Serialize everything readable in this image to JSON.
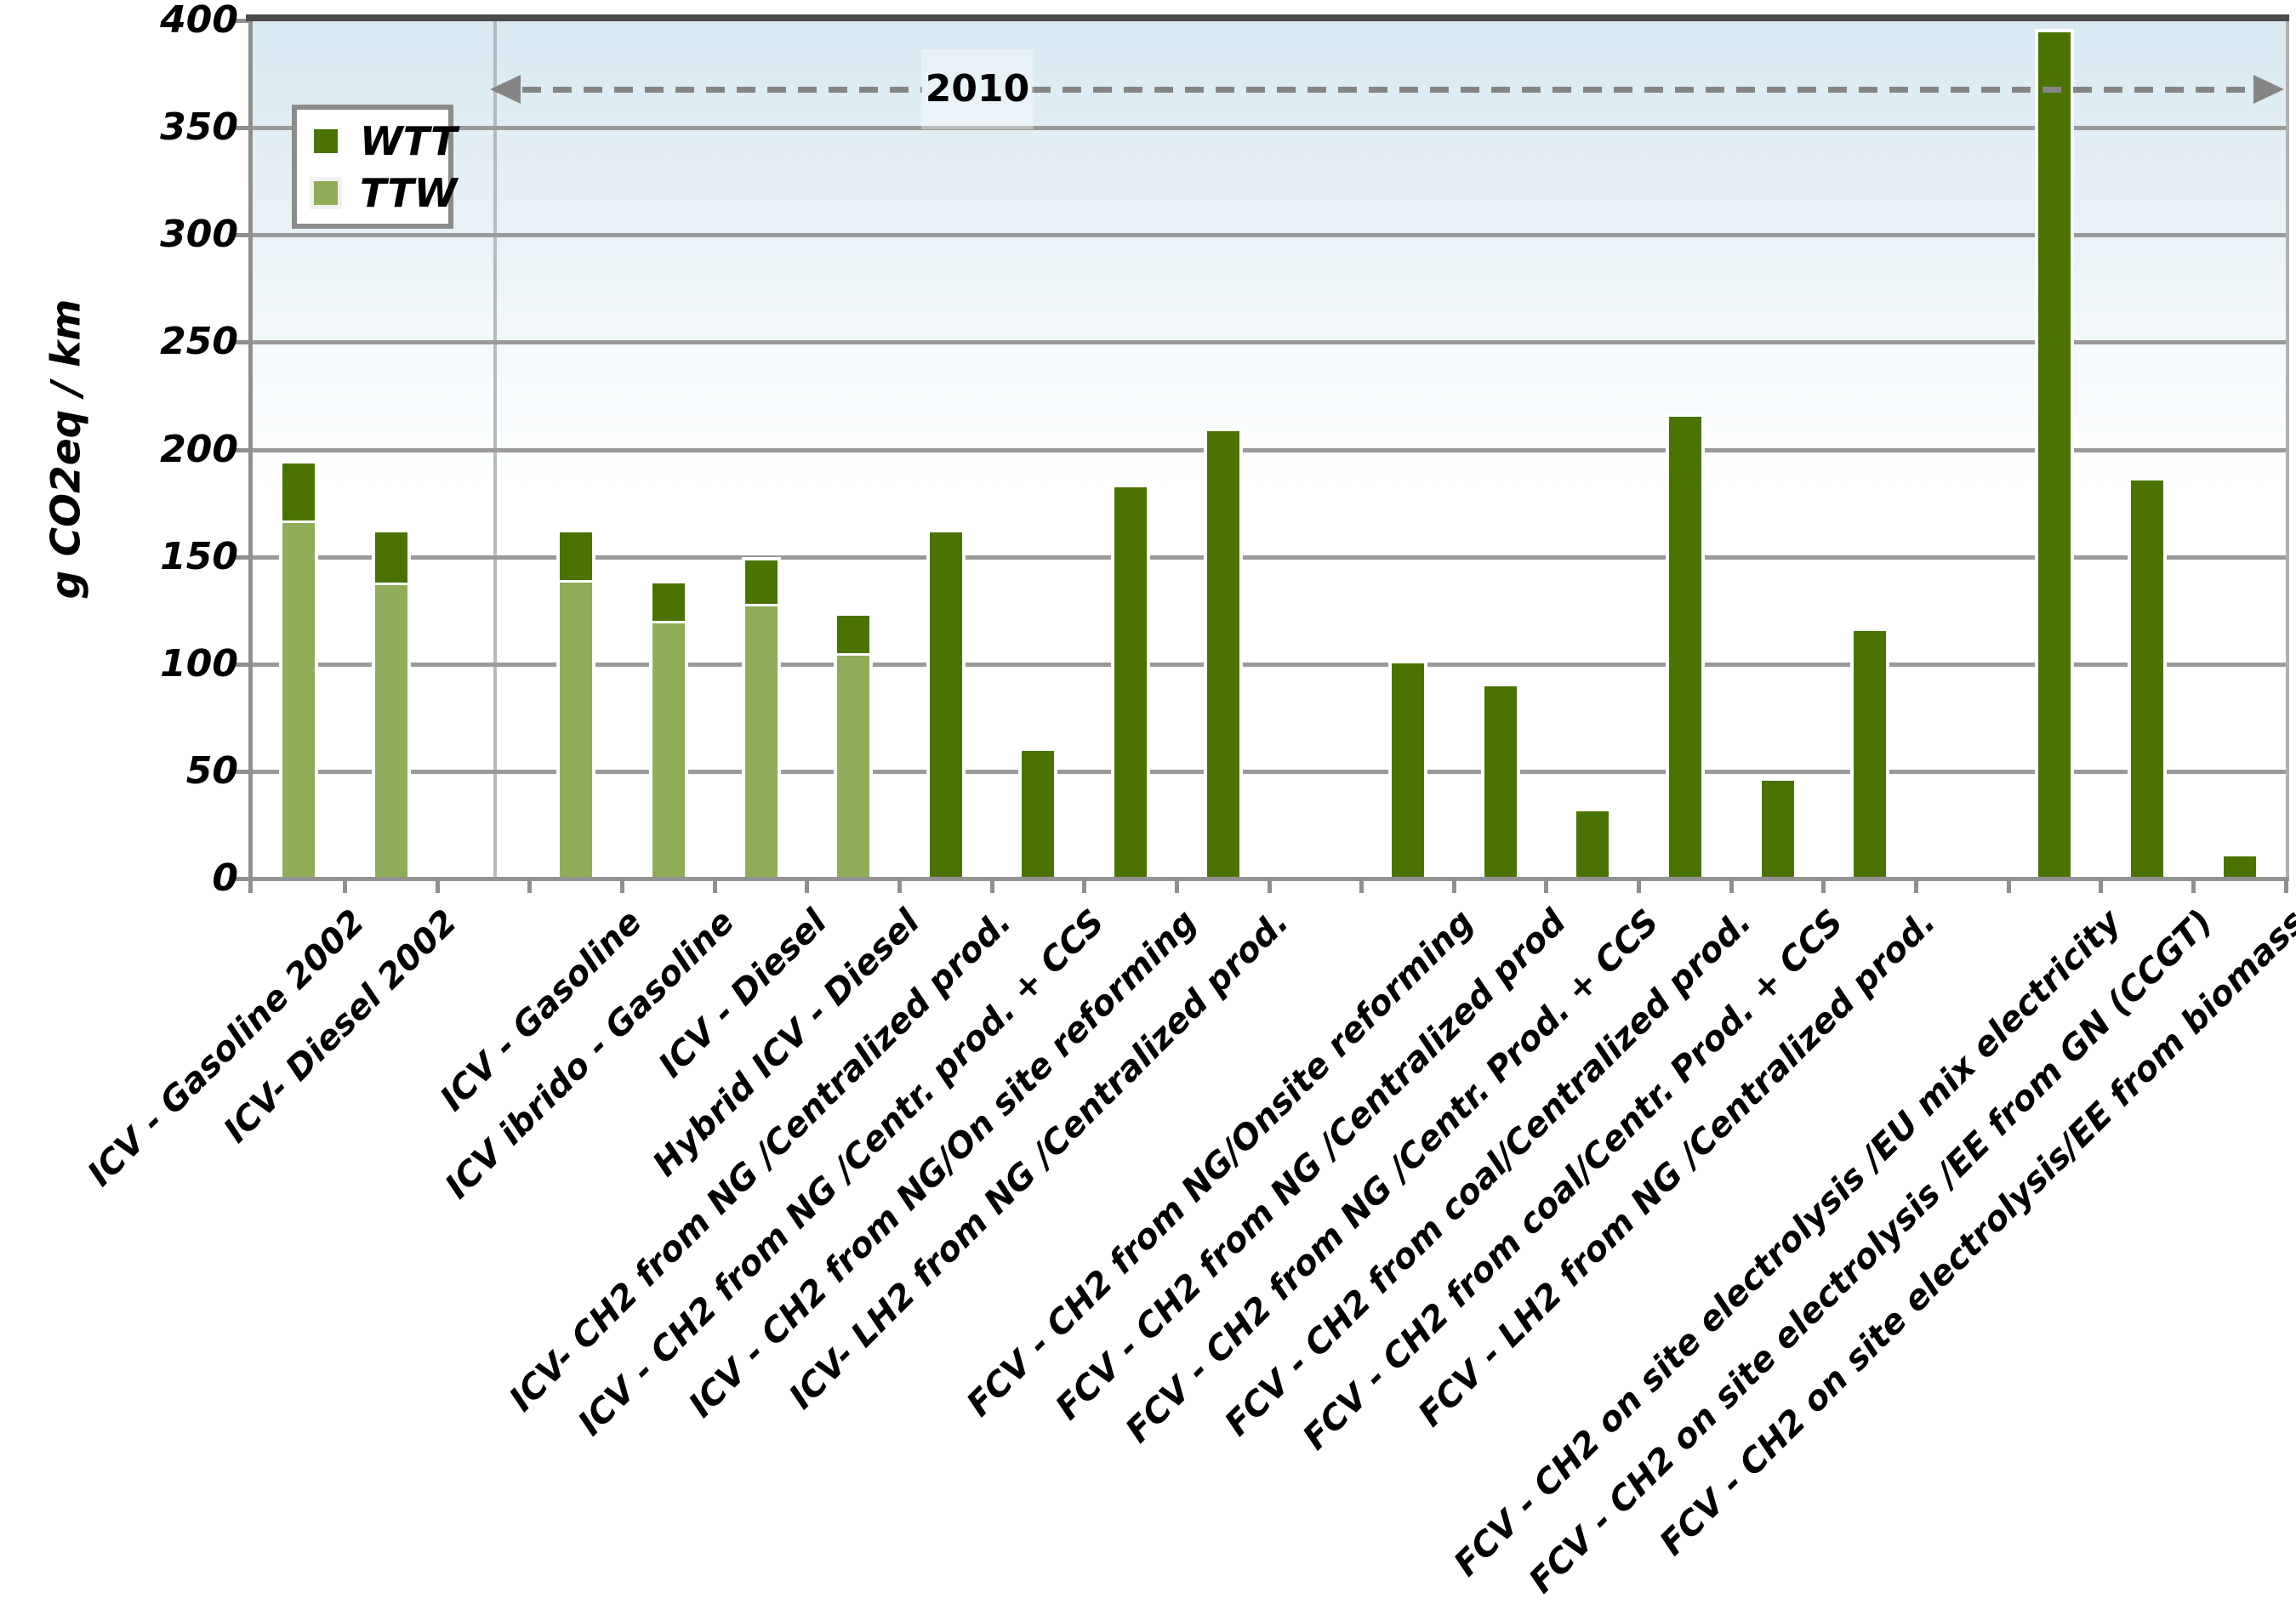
{
  "y_axis": {
    "title": "g CO2eq / km",
    "ticks": [
      0,
      50,
      100,
      150,
      200,
      250,
      300,
      350,
      400
    ],
    "max": 400
  },
  "legend": {
    "items": [
      {
        "label": "WTT",
        "color": "#4a7302"
      },
      {
        "label": "TTW",
        "color": "#8fad58"
      }
    ]
  },
  "annotation": {
    "label": "2010"
  },
  "colors": {
    "wtt_dark_green": "#4a7302",
    "ttw_light_green": "#8fad58",
    "gridline_gray": "#9a9a9a",
    "top_border_gray": "#4b4b4b",
    "dashed_arrow_gray": "#858585",
    "plot_background_top": "#d8e9f1"
  },
  "chart_data": {
    "type": "bar",
    "stacked": true,
    "title": "",
    "xlabel": "",
    "ylabel": "g CO2eq / km",
    "ylim": [
      0,
      400
    ],
    "grid": true,
    "legend_position": "upper-left",
    "categories": [
      "ICV - Gasoline  2002",
      "ICV- Diesel 2002",
      "ICV - Gasoline",
      "ICV ibrido - Gasoline",
      "ICV - Diesel",
      "Hybrid ICV  - Diesel",
      "ICV- CH2 from NG /Centralized prod.",
      "ICV - CH2 from  NG /Centr. prod. + CCS",
      "ICV - CH2 from NG/On site reforming",
      "ICV- LH2 from NG /Centralized prod.",
      "FCV - CH2 from NG/Onsite reforming",
      "FCV - CH2 from  NG /Centralized  prod",
      "FCV - CH2 from NG /Centr.  Prod. + CCS",
      "FCV - CH2 from coal/Centralized prod.",
      "FCV - CH2 from coal/Centr.  Prod. + CCS",
      "FCV - LH2 from NG  /Centralized prod.",
      "FCV - CH2  on site electrolysis  /EU mix electricity",
      "FCV - CH2 on site electrolysis  /EE from GN (CCGT)",
      "FCV - CH2 on site electrolysis/EE  from  biomass"
    ],
    "series": [
      {
        "name": "WTT",
        "color": "#4a7302",
        "values": [
          28,
          25,
          24,
          19,
          22,
          19,
          163,
          61,
          184,
          210,
          102,
          91,
          33,
          217,
          47,
          117,
          396,
          187,
          12
        ]
      },
      {
        "name": "TTW",
        "color": "#8fad58",
        "values": [
          167,
          138,
          139,
          120,
          128,
          105,
          0,
          0,
          0,
          0,
          0,
          0,
          0,
          0,
          0,
          0,
          0,
          0,
          0
        ]
      }
    ],
    "totals": [
      195,
      163,
      163,
      139,
      150,
      124,
      163,
      61,
      184,
      210,
      102,
      91,
      33,
      217,
      47,
      117,
      396,
      187,
      12
    ],
    "annotation_2010_span": "from group divider to right edge",
    "layout": {
      "total_slots": 22,
      "slot_of_category": [
        0,
        1,
        3,
        4,
        5,
        6,
        7,
        8,
        9,
        10,
        12,
        13,
        14,
        15,
        16,
        17,
        19,
        20,
        21
      ],
      "divider_after_category_index": 1
    }
  }
}
